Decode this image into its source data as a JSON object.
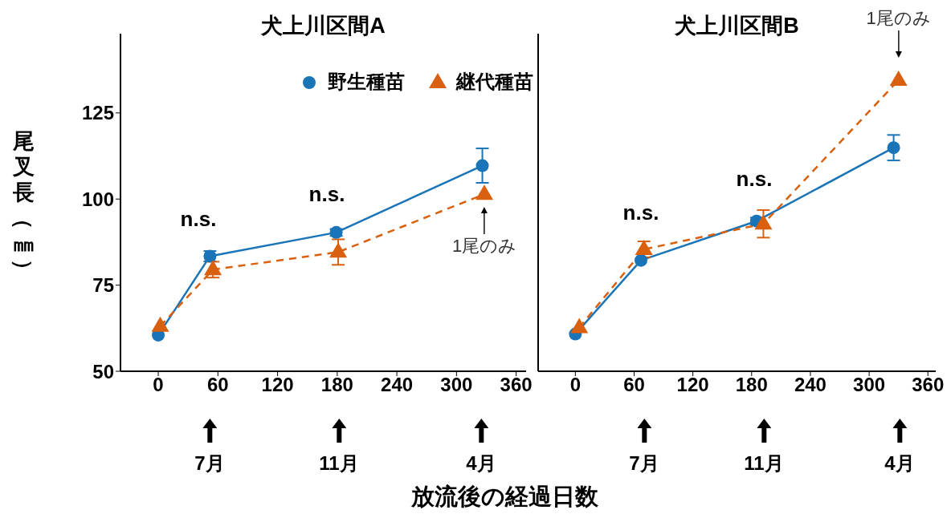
{
  "chart_data": [
    {
      "type": "line",
      "title": "犬上川区間A",
      "xlabel": "放流後の経過日数",
      "ylabel": "尾叉長（㎜）",
      "xlim": [
        -38,
        370
      ],
      "xticks": [
        0,
        60,
        120,
        180,
        240,
        300,
        360
      ],
      "ylim": [
        50,
        148
      ],
      "yticks": [
        50,
        75,
        100,
        125
      ],
      "legend": "top right",
      "series": [
        {
          "name": "野生種苗",
          "color": "#1a74b8",
          "marker": "circle",
          "line_style": "solid",
          "x": [
            0,
            52,
            179,
            326
          ],
          "values": [
            60.5,
            83.4,
            90.3,
            109.7
          ],
          "errors": [
            null,
            1.5,
            1,
            5
          ]
        },
        {
          "name": "継代種苗",
          "color": "#d9600f",
          "marker": "triangle",
          "line_style": "dashed",
          "x": [
            2,
            55,
            181,
            328
          ],
          "values": [
            63.1,
            79.5,
            84.6,
            101.4
          ],
          "errors": [
            null,
            2.3,
            3.7,
            null
          ]
        }
      ],
      "annotations": [
        "n.s.",
        "n.s.",
        {
          "text": "1尾のみ",
          "x": 328,
          "y": 101.4
        },
        "7月",
        "11月",
        "4月"
      ]
    },
    {
      "type": "line",
      "title": "犬上川区間B",
      "xlim": [
        -38,
        368
      ],
      "xticks": [
        0,
        60,
        120,
        180,
        240,
        300,
        360
      ],
      "ylim": [
        50,
        148
      ],
      "yticks": [
        50,
        75,
        100,
        125
      ],
      "tick_labels": "x",
      "series": [
        {
          "color": "#1a74b8",
          "marker": "circle",
          "line_style": "solid",
          "x": [
            0,
            67,
            185,
            325
          ],
          "values": [
            60.8,
            82.2,
            93.6,
            114.9
          ],
          "errors": [
            null,
            null,
            1,
            3.7
          ]
        },
        {
          "color": "#d9600f",
          "marker": "triangle",
          "line_style": "dashed",
          "x": [
            4,
            70,
            192,
            330
          ],
          "values": [
            62.7,
            85.4,
            92.8,
            134.5
          ],
          "errors": [
            null,
            2.3,
            4,
            null
          ]
        }
      ],
      "annotations": [
        "n.s.",
        "n.s.",
        {
          "text": "1尾のみ",
          "x": 330,
          "y": 134.5
        },
        "7月",
        "11月",
        "4月"
      ]
    }
  ]
}
